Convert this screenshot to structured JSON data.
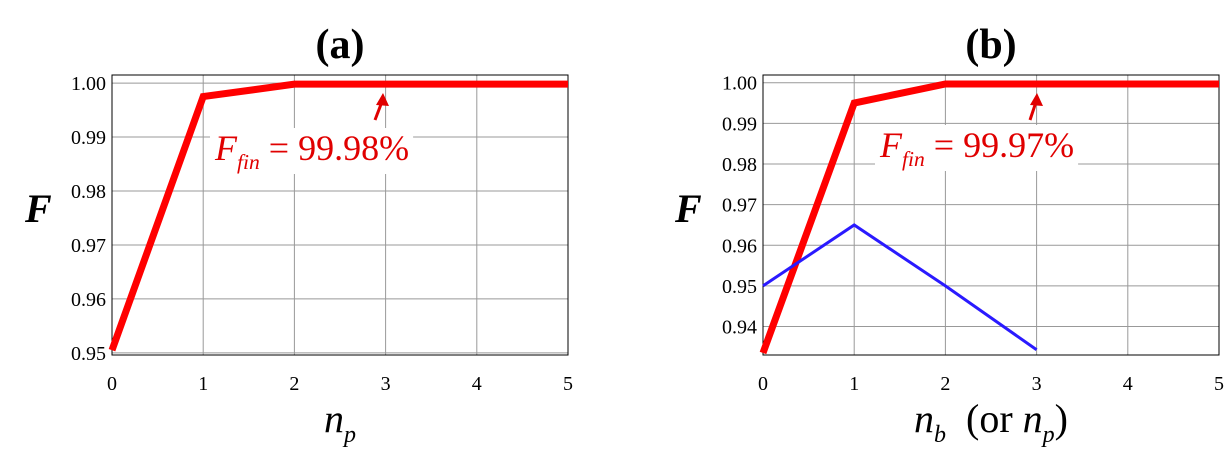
{
  "chart_data": [
    {
      "type": "line",
      "title": "(a)",
      "ylabel": "F",
      "xlabel": [
        {
          "text": "n",
          "italic": true
        },
        {
          "text": "p",
          "italic": true,
          "sub": true
        }
      ],
      "x": [
        0,
        1,
        2,
        3,
        4,
        5
      ],
      "series": [
        {
          "color": "#ff0000",
          "values": [
            0.9505,
            0.9975,
            0.9998,
            0.9998,
            0.9998,
            0.9998
          ]
        }
      ],
      "xlim": [
        0,
        5
      ],
      "xticks": [
        0,
        1,
        2,
        3,
        4,
        5
      ],
      "ylim": [
        0.9496,
        1.0015
      ],
      "yticks": [
        0.95,
        0.96,
        0.97,
        0.98,
        0.99,
        {
          "value": 1.0,
          "label": "1.00"
        }
      ],
      "grid": true,
      "annotation": [
        {
          "text": "F",
          "italic": true
        },
        {
          "text": "fin",
          "italic": true,
          "sub": true
        },
        {
          "text": " = 99.98%"
        }
      ]
    },
    {
      "type": "line",
      "title": "(b)",
      "ylabel": "F",
      "xlabel": [
        {
          "text": "n",
          "italic": true
        },
        {
          "text": "b",
          "italic": true,
          "sub": true
        },
        {
          "text": "  (or "
        },
        {
          "text": "n",
          "italic": true
        },
        {
          "text": "p",
          "italic": true,
          "sub": true
        },
        {
          "text": ")"
        }
      ],
      "x": [
        0,
        1,
        2,
        3,
        4,
        5
      ],
      "series": [
        {
          "color": "#ff0000",
          "values": [
            0.9335,
            0.995,
            0.9997,
            0.9997,
            0.9997,
            0.9997
          ]
        },
        {
          "color": "#2a1aff",
          "values": [
            0.95,
            0.965,
            0.95,
            0.9343,
            null,
            null
          ]
        }
      ],
      "xlim": [
        0,
        5
      ],
      "xticks": [
        0,
        1,
        2,
        3,
        4,
        5
      ],
      "ylim": [
        0.933,
        1.0019
      ],
      "yticks": [
        0.94,
        0.95,
        0.96,
        0.97,
        0.98,
        0.99,
        {
          "value": 1.0,
          "label": "1.00"
        }
      ],
      "grid": true,
      "annotation": [
        {
          "text": "F",
          "italic": true
        },
        {
          "text": "fin",
          "italic": true,
          "sub": true
        },
        {
          "text": " = 99.97%"
        }
      ]
    }
  ]
}
